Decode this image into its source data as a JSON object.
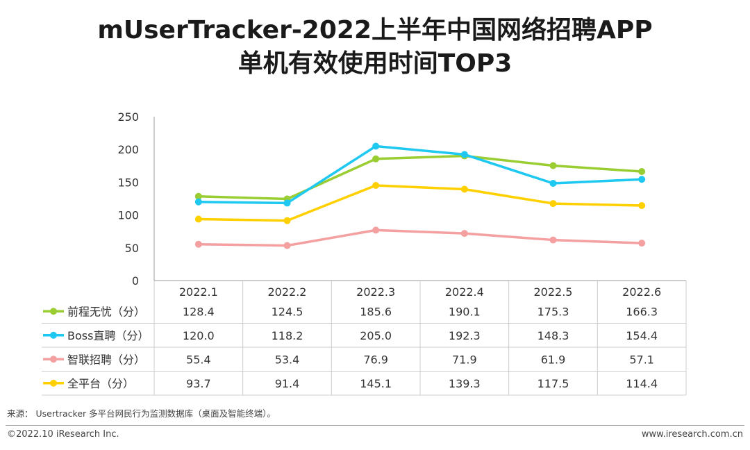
{
  "header": {
    "title_line1": "mUserTracker-2022上半年中国网络招聘APP",
    "title_line2": "单机有效使用时间TOP3"
  },
  "chart_data": {
    "type": "line",
    "title": "mUserTracker-2022上半年中国网络招聘APP 单机有效使用时间TOP3",
    "categories": [
      "2022.1",
      "2022.2",
      "2022.3",
      "2022.4",
      "2022.5",
      "2022.6"
    ],
    "ylim": [
      0,
      250
    ],
    "yticks": [
      0,
      50,
      100,
      150,
      200,
      250
    ],
    "grid": false,
    "legend_placement": "data-table-left",
    "series": [
      {
        "name": "前程无忧（分）",
        "color": "#9ACD32",
        "values": [
          128.4,
          124.5,
          185.6,
          190.1,
          175.3,
          166.3
        ],
        "labels": [
          "128.4",
          "124.5",
          "185.6",
          "190.1",
          "175.3",
          "166.3"
        ]
      },
      {
        "name": "Boss直聘（分）",
        "color": "#1EC8F0",
        "values": [
          120.0,
          118.2,
          205.0,
          192.3,
          148.3,
          154.4
        ],
        "labels": [
          "120.0",
          "118.2",
          "205.0",
          "192.3",
          "148.3",
          "154.4"
        ]
      },
      {
        "name": "智联招聘（分）",
        "color": "#F4A0A0",
        "values": [
          55.4,
          53.4,
          76.9,
          71.9,
          61.9,
          57.1
        ],
        "labels": [
          "55.4",
          "53.4",
          "76.9",
          "71.9",
          "61.9",
          "57.1"
        ]
      },
      {
        "name": "全平台（分）",
        "color": "#FFD000",
        "values": [
          93.7,
          91.4,
          145.1,
          139.3,
          117.5,
          114.4
        ],
        "labels": [
          "93.7",
          "91.4",
          "145.1",
          "139.3",
          "117.5",
          "114.4"
        ]
      }
    ]
  },
  "footer": {
    "source": "来源： Usertracker 多平台网民行为监测数据库（桌面及智能终端）。",
    "copyright": "©2022.10 iResearch Inc.",
    "website": "www.iresearch.com.cn"
  }
}
